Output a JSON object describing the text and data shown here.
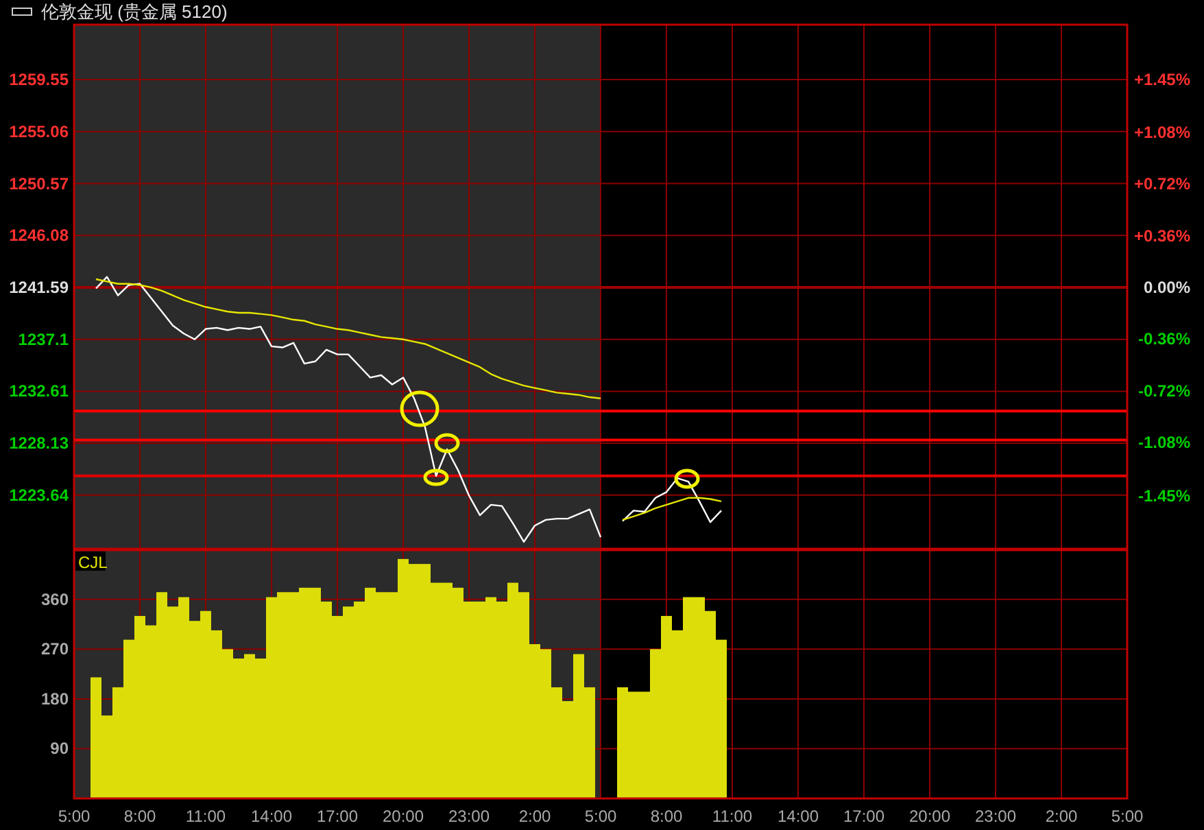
{
  "chart_data": [
    {
      "type": "line",
      "title": "伦敦金现 (贵金属 5120)",
      "categories": [
        null,
        null,
        null,
        null,
        null,
        null,
        null,
        null,
        null,
        null,
        null,
        null,
        null,
        null,
        null,
        null,
        null,
        null,
        null,
        null,
        null,
        null,
        null,
        null,
        null,
        null,
        null,
        null,
        null,
        null,
        null,
        null,
        null,
        null,
        null,
        null,
        null,
        null,
        null,
        null,
        null,
        null,
        null,
        null,
        null,
        null,
        null,
        null,
        null,
        null,
        null,
        null,
        null,
        null,
        null,
        null,
        null,
        null,
        null,
        null,
        null,
        null,
        null,
        null,
        null,
        null,
        null,
        null,
        null,
        null,
        null,
        null,
        null,
        null,
        null,
        null,
        null,
        null,
        null,
        null,
        null,
        null,
        null,
        null,
        null,
        null,
        null,
        null,
        null,
        null,
        null,
        null,
        null,
        null,
        null,
        null,
        null
      ],
      "ylim": [
        1219.0,
        1264.3
      ],
      "yticks": [
        1223.64,
        1228.13,
        1232.61,
        1237.1,
        1241.59,
        1246.08,
        1250.57,
        1255.06,
        1259.55
      ],
      "y2lim": [
        -1.82,
        1.83
      ],
      "y2ticks": [
        {
          "value": -1.45,
          "label": "-1.45%"
        },
        {
          "value": -1.08,
          "label": "-1.08%"
        },
        {
          "value": -0.72,
          "label": "-0.72%"
        },
        {
          "value": -0.36,
          "label": "-0.36%"
        },
        {
          "value": 0,
          "label": "0.00%"
        },
        {
          "value": 0.36,
          "label": "+0.36%"
        },
        {
          "value": 0.72,
          "label": "+0.72%"
        },
        {
          "value": 1.08,
          "label": "+1.08%"
        },
        {
          "value": 1.45,
          "label": "+1.45%"
        }
      ],
      "tick_labels": "y",
      "grid": true,
      "marker": "none",
      "line_style": "solid",
      "ref_lines": [
        {
          "axis": "y",
          "value": 1241.59,
          "color": "#a00000"
        },
        {
          "axis": "y",
          "value": 1230.9,
          "color": "#ff0000"
        },
        {
          "axis": "y",
          "value": 1228.4,
          "color": "#ff0000"
        },
        {
          "axis": "y",
          "value": 1225.3,
          "color": "#e00000"
        }
      ],
      "series": [
        {
          "color": "#ffffff",
          "values": [
            null,
            null,
            1241.5,
            1242.5,
            1240.9,
            1241.8,
            1241.9,
            1240.7,
            1239.5,
            1238.3,
            1237.6,
            1237.1,
            1238.0,
            1238.1,
            1237.9,
            1238.1,
            1238.0,
            1238.2,
            1236.5,
            1236.4,
            1236.8,
            1235.0,
            1235.2,
            1236.2,
            1235.8,
            1235.8,
            1234.8,
            1233.8,
            1234.0,
            1233.2,
            1233.8,
            1232.0,
            1229.5,
            1225.3,
            1227.6,
            1225.8,
            1223.6,
            1221.9,
            1222.8,
            1222.7,
            1221.2,
            1219.6,
            1221.0,
            1221.5,
            1221.6,
            1221.6,
            1222.0,
            1222.4,
            1220.0,
            null,
            1221.4,
            1222.3,
            1222.2,
            1223.4,
            1223.9,
            1225.1,
            1224.8,
            1223.1,
            1221.3,
            1222.3,
            null,
            null,
            null,
            null,
            null,
            null,
            null,
            null,
            null,
            null,
            null,
            null,
            null,
            null,
            null,
            null,
            null,
            null,
            null,
            null,
            null,
            null,
            null,
            null,
            null,
            null,
            null,
            null,
            null,
            null,
            null,
            null,
            null,
            null,
            null,
            null,
            null
          ]
        },
        {
          "color": "#e6e600",
          "values": [
            null,
            null,
            1242.3,
            1242.1,
            1241.9,
            1241.9,
            1241.8,
            1241.6,
            1241.3,
            1240.9,
            1240.5,
            1240.2,
            1239.9,
            1239.7,
            1239.5,
            1239.4,
            1239.4,
            1239.3,
            1239.2,
            1239.0,
            1238.8,
            1238.7,
            1238.4,
            1238.2,
            1238.0,
            1237.9,
            1237.7,
            1237.5,
            1237.3,
            1237.2,
            1237.1,
            1236.9,
            1236.7,
            1236.3,
            1235.9,
            1235.5,
            1235.1,
            1234.7,
            1234.1,
            1233.7,
            1233.4,
            1233.1,
            1232.9,
            1232.7,
            1232.5,
            1232.4,
            1232.3,
            1232.1,
            1232.0,
            null,
            1221.5,
            1221.8,
            1222.1,
            1222.5,
            1222.8,
            1223.1,
            1223.4,
            1223.4,
            1223.3,
            1223.1,
            null,
            null,
            null,
            null,
            null,
            null,
            null,
            null,
            null,
            null,
            null,
            null,
            null,
            null,
            null,
            null,
            null,
            null,
            null,
            null,
            null,
            null,
            null,
            null,
            null,
            null,
            null,
            null,
            null,
            null,
            null,
            null,
            null,
            null,
            null,
            null,
            null
          ]
        }
      ]
    },
    {
      "type": "bar",
      "title": "CJL",
      "categories": [
        "5:00",
        null,
        null,
        null,
        null,
        null,
        "8:00",
        null,
        null,
        null,
        null,
        null,
        "11:00",
        null,
        null,
        null,
        null,
        null,
        "14:00",
        null,
        null,
        null,
        null,
        null,
        "17:00",
        null,
        null,
        null,
        null,
        null,
        "20:00",
        null,
        null,
        null,
        null,
        null,
        "23:00",
        null,
        null,
        null,
        null,
        null,
        "2:00",
        null,
        null,
        null,
        null,
        null,
        "5:00",
        null,
        null,
        null,
        null,
        null,
        "8:00",
        null,
        null,
        null,
        null,
        null,
        "11:00",
        null,
        null,
        null,
        null,
        null,
        "14:00",
        null,
        null,
        null,
        null,
        null,
        "17:00",
        null,
        null,
        null,
        null,
        null,
        "20:00",
        null,
        null,
        null,
        null,
        null,
        "23:00",
        null,
        null,
        null,
        null,
        null,
        "2:00",
        null,
        null,
        null,
        null,
        null,
        "5:00"
      ],
      "ylim": [
        0,
        449
      ],
      "yticks": [
        90,
        180,
        270,
        360
      ],
      "grid": true,
      "series": [
        {
          "color": "#dddd0a",
          "values": [
            null,
            null,
            219,
            150,
            201,
            287,
            330,
            313,
            373,
            347,
            364,
            321,
            339,
            304,
            270,
            253,
            261,
            253,
            364,
            373,
            373,
            381,
            381,
            356,
            330,
            347,
            356,
            381,
            373,
            373,
            433,
            424,
            424,
            390,
            390,
            381,
            356,
            356,
            364,
            356,
            390,
            373,
            279,
            270,
            201,
            176,
            261,
            201,
            null,
            null,
            201,
            193,
            193,
            270,
            330,
            304,
            364,
            364,
            339,
            287,
            null,
            null,
            null,
            null,
            null,
            null,
            null,
            null,
            null,
            null,
            null,
            null,
            null,
            null,
            null,
            null,
            null,
            null,
            null,
            null,
            null,
            null,
            null,
            null,
            null,
            null,
            null,
            null,
            null,
            null,
            null,
            null,
            null,
            null,
            null,
            null,
            null
          ]
        }
      ]
    }
  ]
}
